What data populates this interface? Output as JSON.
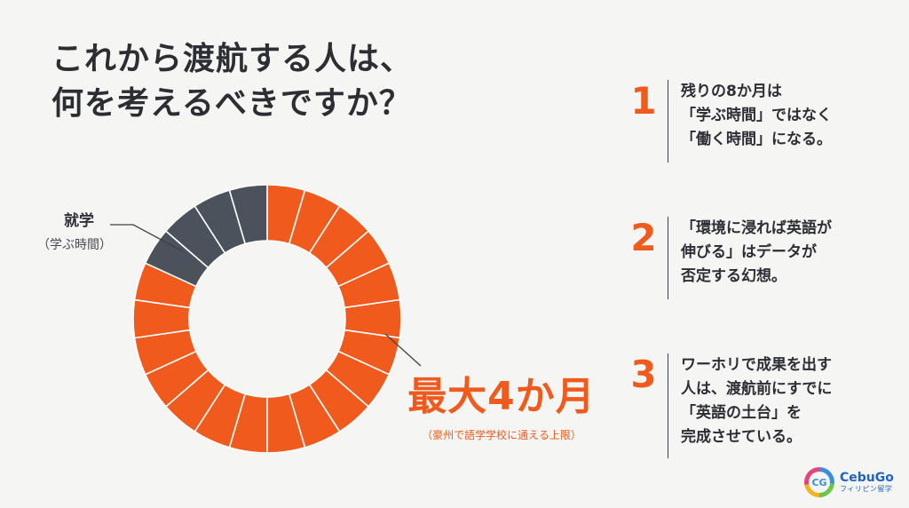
{
  "title_lines": [
    "これから渡航する人は、",
    "何を考えるべきですか？"
  ],
  "donut": {
    "colors": {
      "study": "#4b525b",
      "work": "#f05a1d",
      "divider": "#ffffff"
    },
    "segments": [
      "work",
      "work",
      "work",
      "work",
      "work",
      "work",
      "work",
      "work",
      "work",
      "work",
      "work",
      "work",
      "work",
      "work",
      "work",
      "work",
      "work",
      "work",
      "study",
      "study",
      "study",
      "study"
    ]
  },
  "left_callout": {
    "main": "就学",
    "sub": "（学ぶ時間）"
  },
  "right_callout": {
    "main": "最大4か月",
    "sub": "（豪州で語学学校に通える上限）"
  },
  "points": [
    {
      "number": "1",
      "lines": [
        "残りの8か月は",
        "「学ぶ時間」ではなく",
        "「働く時間」になる。"
      ]
    },
    {
      "number": "2",
      "lines": [
        "「環境に浸れば英語が",
        "伸びる」はデータが",
        "否定する幻想。"
      ]
    },
    {
      "number": "3",
      "lines": [
        "ワーホリで成果を出す",
        "人は、渡航前にすでに",
        "「英語の土台」を",
        "完成させている。"
      ]
    }
  ],
  "logo": {
    "mark": "CG",
    "name": "CebuGo",
    "sub": "フィリピン留学"
  }
}
